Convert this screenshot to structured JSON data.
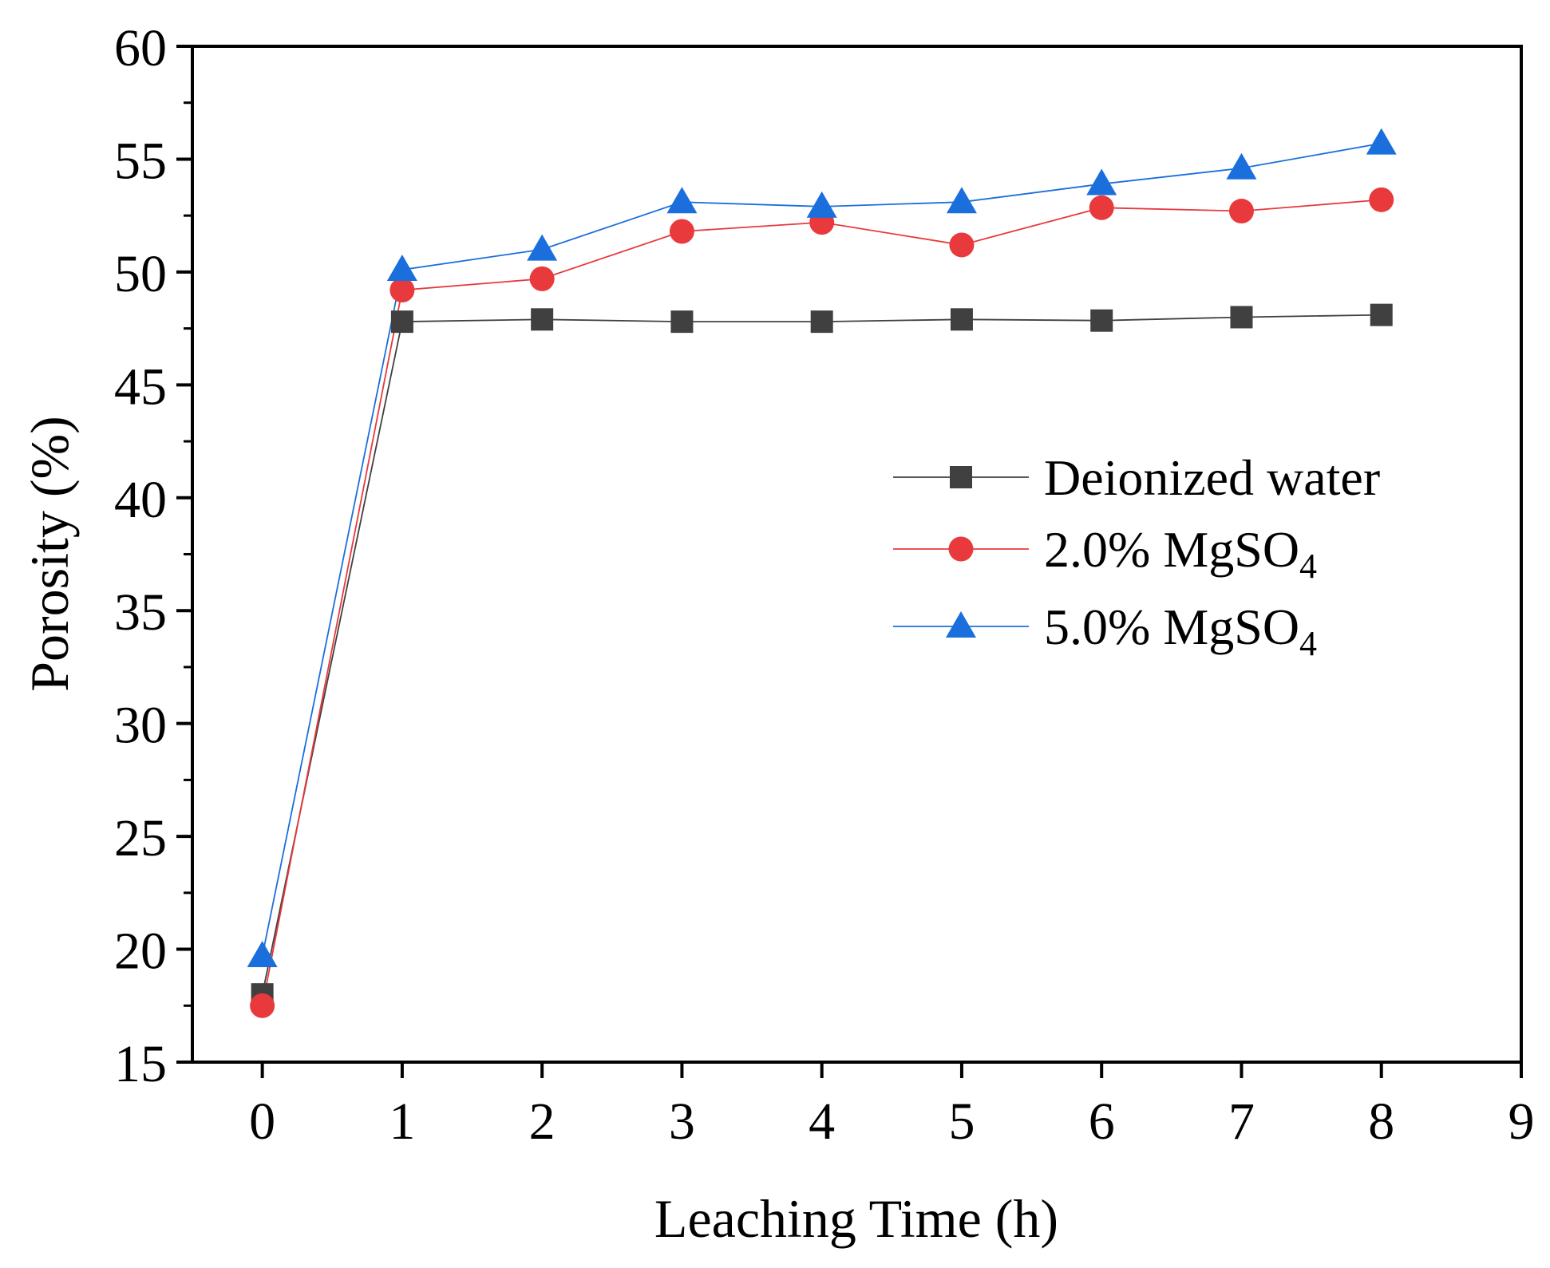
{
  "chart_data": {
    "type": "line",
    "title": "",
    "xlabel": "Leaching Time  (h)",
    "ylabel": "Porosity  (%)",
    "xlim": [
      -0.5,
      9
    ],
    "ylim": [
      15,
      60
    ],
    "xticks": [
      0,
      1,
      2,
      3,
      4,
      5,
      6,
      7,
      8,
      9
    ],
    "yticks": [
      15,
      20,
      25,
      30,
      35,
      40,
      45,
      50,
      55,
      60
    ],
    "x": [
      0,
      1,
      2,
      3,
      4,
      5,
      6,
      7,
      8
    ],
    "series": [
      {
        "name": "Deionized  water",
        "legend_main": "Deionized  water",
        "legend_sub": "",
        "marker": "square",
        "color": "#404040",
        "values": [
          18.0,
          47.8,
          47.9,
          47.8,
          47.8,
          47.9,
          47.85,
          48.0,
          48.1
        ]
      },
      {
        "name": "2.0% MgSO4",
        "legend_main": "2.0% MgSO",
        "legend_sub": "4",
        "marker": "circle",
        "color": "#e8393c",
        "values": [
          17.5,
          49.2,
          49.7,
          51.8,
          52.2,
          51.2,
          52.85,
          52.7,
          53.2
        ]
      },
      {
        "name": "5.0% MgSO4",
        "legend_main": "5.0% MgSO",
        "legend_sub": "4",
        "marker": "triangle",
        "color": "#1b6fdc",
        "values": [
          19.7,
          50.1,
          51.0,
          53.1,
          52.9,
          53.1,
          53.9,
          54.6,
          55.7
        ]
      }
    ],
    "legend": "center-right",
    "grid": false
  }
}
